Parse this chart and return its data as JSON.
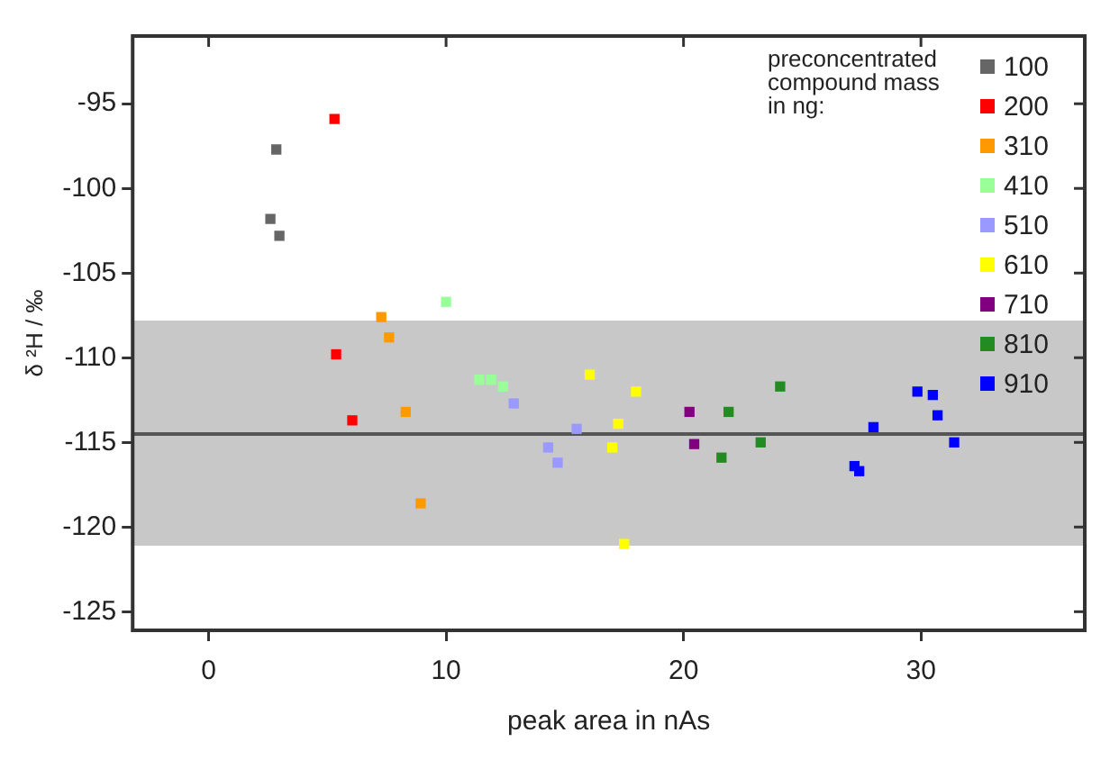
{
  "chart_data": {
    "type": "scatter",
    "xlabel": "peak area in nAs",
    "ylabel": "δ ²H / ‰",
    "legend_title": "preconcentrated compound mass in ng:",
    "legend": "top right",
    "marker": "square",
    "grid": false,
    "xlim": [
      -3.2,
      36.9
    ],
    "xticks": [
      0,
      10,
      20,
      30
    ],
    "ylim": [
      -126.1,
      -91
    ],
    "yticks": [
      -125,
      -120,
      -115,
      -110,
      -105,
      -100,
      -95
    ],
    "ref_lines": [
      {
        "axis": "y",
        "value": -114.5,
        "color": "#555555"
      }
    ],
    "bands": [
      {
        "axis": "y",
        "from": -121.1,
        "to": -107.8,
        "color": "#c8c8c8"
      }
    ],
    "series": [
      {
        "name": "100",
        "color": "#666666",
        "x": [
          2.85,
          2.6,
          2.98
        ],
        "values": [
          -97.7,
          -101.8,
          -102.8
        ]
      },
      {
        "name": "200",
        "color": "#ff0000",
        "x": [
          5.3,
          5.37,
          6.05
        ],
        "values": [
          -95.9,
          -109.8,
          -113.7
        ]
      },
      {
        "name": "310",
        "color": "#ff9900",
        "x": [
          7.27,
          7.6,
          8.3,
          8.93
        ],
        "values": [
          -107.6,
          -108.8,
          -113.2,
          -118.6
        ]
      },
      {
        "name": "410",
        "color": "#99ff99",
        "x": [
          10.0,
          11.4,
          11.9,
          12.4
        ],
        "values": [
          -106.7,
          -111.3,
          -111.3,
          -111.7
        ]
      },
      {
        "name": "510",
        "color": "#9999ff",
        "x": [
          12.85,
          14.3,
          14.7,
          15.5
        ],
        "values": [
          -112.7,
          -115.3,
          -116.2,
          -114.2
        ]
      },
      {
        "name": "610",
        "color": "#ffff00",
        "x": [
          16.05,
          18.0,
          17.25,
          17.0,
          17.5
        ],
        "values": [
          -111.0,
          -112.0,
          -113.9,
          -115.3,
          -121.0
        ]
      },
      {
        "name": "710",
        "color": "#800080",
        "x": [
          20.25,
          20.45
        ],
        "values": [
          -113.2,
          -115.1
        ]
      },
      {
        "name": "810",
        "color": "#228b22",
        "x": [
          21.9,
          21.6,
          23.25,
          24.07
        ],
        "values": [
          -113.2,
          -115.9,
          -115.0,
          -111.7
        ]
      },
      {
        "name": "910",
        "color": "#0000ff",
        "x": [
          28.0,
          27.2,
          27.4,
          29.85,
          30.5,
          30.7,
          31.4
        ],
        "values": [
          -114.1,
          -116.4,
          -116.7,
          -112.0,
          -112.2,
          -113.4,
          -115.0
        ]
      }
    ]
  }
}
